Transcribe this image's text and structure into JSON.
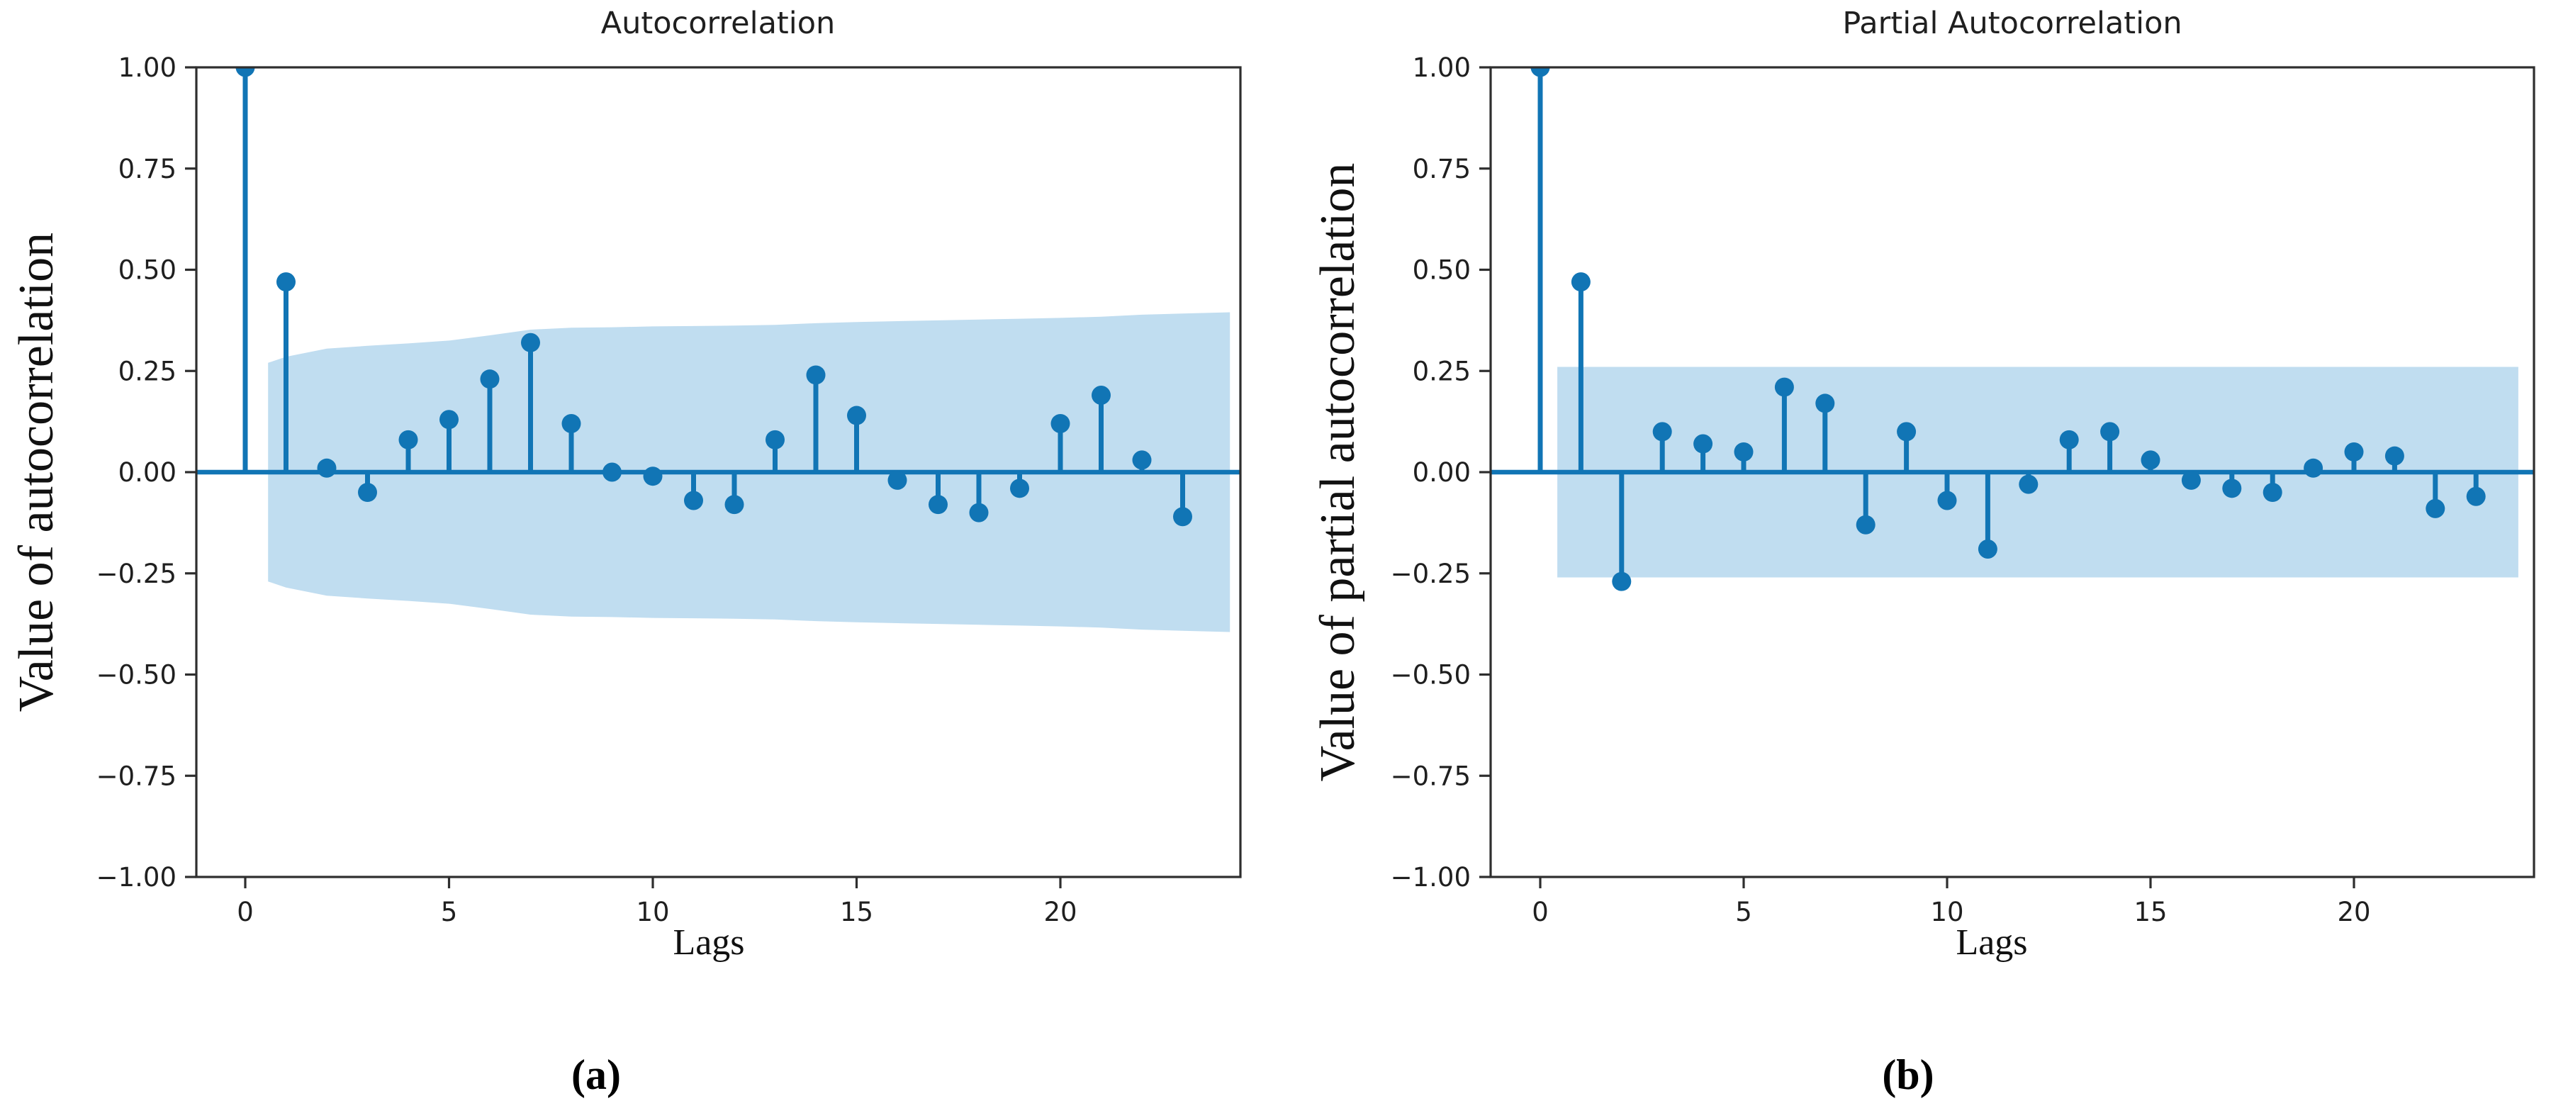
{
  "figure_type": "acf-pacf-stem-plots",
  "colors": {
    "stem": "#1175b5",
    "band": "#c0ddf0",
    "axis": "#2e2e2e",
    "text": "#1f1f1f",
    "background": "#ffffff"
  },
  "chart_data": [
    {
      "type": "stem",
      "title": "Autocorrelation",
      "xlabel": "Lags",
      "ylabel": "Value of autocorrelation",
      "caption": "(a)",
      "x": [
        0,
        1,
        2,
        3,
        4,
        5,
        6,
        7,
        8,
        9,
        10,
        11,
        12,
        13,
        14,
        15,
        16,
        17,
        18,
        19,
        20,
        21,
        22,
        23
      ],
      "values": [
        1.0,
        0.47,
        0.01,
        -0.05,
        0.08,
        0.13,
        0.23,
        0.32,
        0.12,
        0.0,
        -0.01,
        -0.07,
        -0.08,
        0.08,
        0.24,
        0.14,
        -0.02,
        -0.08,
        -0.1,
        -0.04,
        0.12,
        0.19,
        0.03,
        -0.11
      ],
      "confidence_band": {
        "symmetric": true,
        "upper": [
          [
            0.56,
            0.27
          ],
          [
            1,
            0.285
          ],
          [
            2,
            0.305
          ],
          [
            3,
            0.312
          ],
          [
            4,
            0.318
          ],
          [
            5,
            0.325
          ],
          [
            6,
            0.338
          ],
          [
            7,
            0.352
          ],
          [
            8,
            0.357
          ],
          [
            9,
            0.358
          ],
          [
            10,
            0.36
          ],
          [
            11,
            0.361
          ],
          [
            12,
            0.362
          ],
          [
            13,
            0.364
          ],
          [
            14,
            0.368
          ],
          [
            15,
            0.371
          ],
          [
            16,
            0.373
          ],
          [
            17,
            0.375
          ],
          [
            18,
            0.377
          ],
          [
            19,
            0.379
          ],
          [
            20,
            0.381
          ],
          [
            21,
            0.384
          ],
          [
            22,
            0.389
          ],
          [
            23,
            0.392
          ],
          [
            24.16,
            0.395
          ]
        ]
      },
      "xlim": [
        -1.2,
        24.4
      ],
      "ylim": [
        -1.0,
        1.0
      ],
      "xticks": [
        0,
        5,
        10,
        15,
        20
      ],
      "yticks": [
        {
          "v": 1.0,
          "label": "1.00"
        },
        {
          "v": 0.75,
          "label": "0.75"
        },
        {
          "v": 0.5,
          "label": "0.50"
        },
        {
          "v": 0.25,
          "label": "0.25"
        },
        {
          "v": 0.0,
          "label": "0.00"
        },
        {
          "v": -0.25,
          "label": "−0.25"
        },
        {
          "v": -0.5,
          "label": "−0.50"
        },
        {
          "v": -0.75,
          "label": "−0.75"
        },
        {
          "v": -1.0,
          "label": "−1.00"
        }
      ],
      "grid": false,
      "legend": null
    },
    {
      "type": "stem",
      "title": "Partial Autocorrelation",
      "xlabel": "Lags",
      "ylabel": "Value of partial autocorrelation",
      "caption": "(b)",
      "x": [
        0,
        1,
        2,
        3,
        4,
        5,
        6,
        7,
        8,
        9,
        10,
        11,
        12,
        13,
        14,
        15,
        16,
        17,
        18,
        19,
        20,
        21,
        22,
        23
      ],
      "values": [
        1.0,
        0.47,
        -0.27,
        0.1,
        0.07,
        0.05,
        0.21,
        0.17,
        -0.13,
        0.1,
        -0.07,
        -0.19,
        -0.03,
        0.08,
        0.1,
        0.03,
        -0.02,
        -0.04,
        -0.05,
        0.01,
        0.05,
        0.04,
        -0.09,
        -0.06
      ],
      "confidence_band": {
        "symmetric": true,
        "upper": [
          [
            0.42,
            0.26
          ],
          [
            24.04,
            0.26
          ]
        ]
      },
      "xlim": [
        -1.2,
        24.4
      ],
      "ylim": [
        -1.0,
        1.0
      ],
      "xticks": [
        0,
        5,
        10,
        15,
        20
      ],
      "yticks": [
        {
          "v": 1.0,
          "label": "1.00"
        },
        {
          "v": 0.75,
          "label": "0.75"
        },
        {
          "v": 0.5,
          "label": "0.50"
        },
        {
          "v": 0.25,
          "label": "0.25"
        },
        {
          "v": 0.0,
          "label": "0.00"
        },
        {
          "v": -0.25,
          "label": "−0.25"
        },
        {
          "v": -0.5,
          "label": "−0.50"
        },
        {
          "v": -0.75,
          "label": "−0.75"
        },
        {
          "v": -1.0,
          "label": "−1.00"
        }
      ],
      "grid": false,
      "legend": null
    }
  ]
}
